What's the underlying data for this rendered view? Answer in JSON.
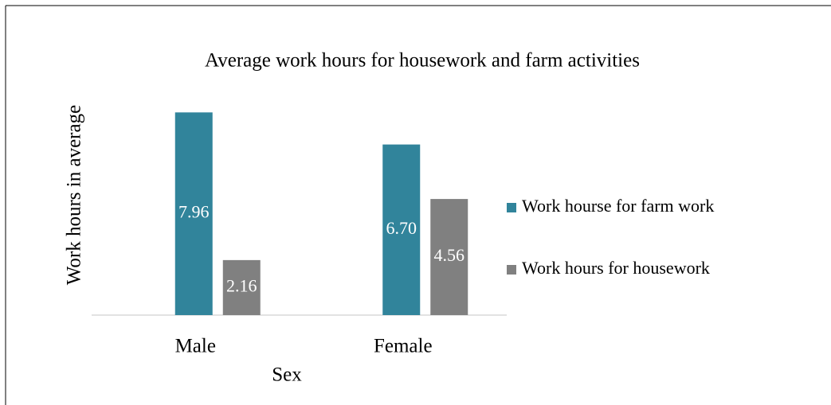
{
  "chart_data": {
    "type": "bar",
    "title": "Average work hours for housework and farm activities",
    "x_label": "Sex",
    "y_label": "Work hours in average",
    "categories": [
      "Male",
      "Female"
    ],
    "series": [
      {
        "name": "Work hourse for farm work",
        "color": "#31849b",
        "values": [
          7.96,
          6.7
        ],
        "value_labels": [
          "7.96",
          "6.70"
        ]
      },
      {
        "name": "Work hours for housework",
        "color": "#808080",
        "values": [
          2.16,
          4.56
        ],
        "value_labels": [
          "2.16",
          "4.56"
        ]
      }
    ],
    "ylim": [
      0,
      8
    ],
    "legend": "right"
  }
}
